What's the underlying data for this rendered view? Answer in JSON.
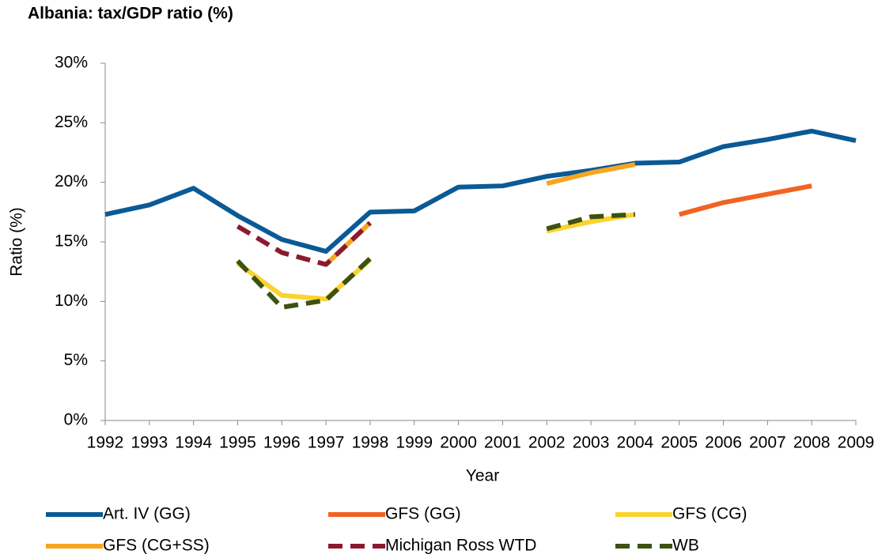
{
  "chart_data": {
    "type": "line",
    "title": "Albania:  tax/GDP ratio (%)",
    "x_label": "Year",
    "y_label": "Ratio (%)",
    "x": [
      1992,
      1993,
      1994,
      1995,
      1996,
      1997,
      1998,
      1999,
      2000,
      2001,
      2002,
      2003,
      2004,
      2005,
      2006,
      2007,
      2008,
      2009
    ],
    "xlim": [
      1992,
      2009
    ],
    "xticks": [
      1992,
      1993,
      1994,
      1995,
      1996,
      1997,
      1998,
      1999,
      2000,
      2001,
      2002,
      2003,
      2004,
      2005,
      2006,
      2007,
      2008,
      2009
    ],
    "ylim": [
      0,
      30
    ],
    "yticks": [
      {
        "value": 0,
        "label": "0%"
      },
      {
        "value": 5,
        "label": "5%"
      },
      {
        "value": 10,
        "label": "10%"
      },
      {
        "value": 15,
        "label": "15%"
      },
      {
        "value": 20,
        "label": "20%"
      },
      {
        "value": 25,
        "label": "25%"
      },
      {
        "value": 30,
        "label": "30%"
      }
    ],
    "grid": false,
    "legend": "bottom",
    "series": [
      {
        "name": "Art. IV (GG)",
        "color": "#0a5a96",
        "style": "solid",
        "values": [
          17.3,
          18.1,
          19.5,
          17.2,
          15.2,
          14.2,
          17.5,
          17.6,
          19.6,
          19.7,
          20.5,
          21.0,
          21.6,
          21.7,
          23.0,
          23.6,
          24.3,
          23.5
        ]
      },
      {
        "name": "GFS (GG)",
        "color": "#f26322",
        "style": "solid",
        "values": [
          null,
          null,
          null,
          null,
          null,
          null,
          null,
          null,
          null,
          null,
          null,
          null,
          null,
          17.3,
          18.3,
          19.0,
          19.7,
          null
        ]
      },
      {
        "name": "GFS (CG)",
        "color": "#fcd22c",
        "style": "solid",
        "values": [
          null,
          null,
          null,
          13.2,
          10.5,
          10.2,
          13.5,
          null,
          null,
          null,
          15.9,
          16.7,
          17.3,
          null,
          null,
          null,
          null,
          null
        ]
      },
      {
        "name": "GFS (CG+SS)",
        "color": "#f7a521",
        "style": "solid",
        "values": [
          null,
          null,
          null,
          null,
          null,
          13.1,
          16.6,
          null,
          null,
          null,
          19.9,
          20.8,
          21.5,
          null,
          null,
          null,
          null,
          null
        ]
      },
      {
        "name": "Michigan Ross WTD",
        "color": "#8b1a2e",
        "style": "dashed",
        "values": [
          null,
          null,
          null,
          16.3,
          14.1,
          13.1,
          16.6,
          null,
          null,
          null,
          null,
          null,
          null,
          null,
          null,
          null,
          null,
          null
        ]
      },
      {
        "name": "WB",
        "color": "#3d5210",
        "style": "dashed",
        "values": [
          null,
          null,
          null,
          13.4,
          9.5,
          10.1,
          13.6,
          null,
          null,
          null,
          16.1,
          17.1,
          17.3,
          null,
          null,
          null,
          null,
          null
        ]
      }
    ]
  }
}
